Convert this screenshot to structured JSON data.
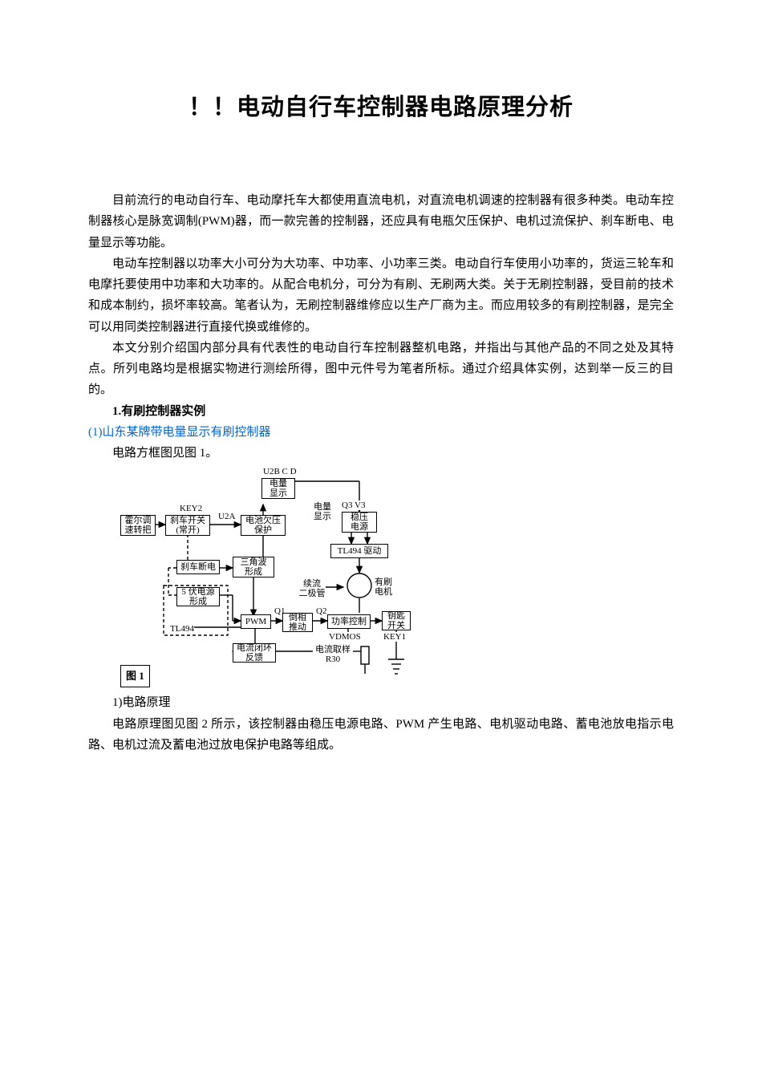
{
  "title": "！！电动自行车控制器电路原理分析",
  "paragraphs": {
    "p1": "目前流行的电动自行车、电动摩托车大都使用直流电机，对直流电机调速的控制器有很多种类。电动车控制器核心是脉宽调制(PWM)器，而一款完善的控制器，还应具有电瓶欠压保护、电机过流保护、刹车断电、电量显示等功能。",
    "p2": "电动车控制器以功率大小可分为大功率、中功率、小功率三类。电动自行车使用小功率的，货运三轮车和电摩托要使用中功率和大功率的。从配合电机分，可分为有刷、无刷两大类。关于无刷控制器，受目前的技术和成本制约，损坏率较高。笔者认为，无刷控制器维修应以生产厂商为主。而应用较多的有刷控制器，是完全可以用同类控制器进行直接代换或维修的。",
    "p3": "本文分别介绍国内部分具有代表性的电动自行车控制器整机电路，并指出与其他产品的不同之处及其特点。所列电路均是根据实物进行测绘所得，图中元件号为笔者所标。通过介绍具体实例，达到举一反三的目的。",
    "sec1": "1.有刷控制器实例",
    "link1": "(1)山东某牌带电量显示有刷控制器",
    "p4": "电路方框图见图 1。",
    "p5": "1)电路原理",
    "p6": "电路原理图见图 2 所示，该控制器由稳压电源电路、PWM 产生电路、电机驱动电路、蓄电池放电指示电路、电机过流及蓄电池过放电保护电路等组成。"
  },
  "figure1": {
    "label": "图 1",
    "nodes": {
      "key2": "KEY2",
      "hall": "霍尔调\n速转把",
      "brake_sw": "刹车开关\n(常开)",
      "u2a": "U2A",
      "undervolt": "电池欠压\n保护",
      "u2bcd": "U2B C D",
      "batt_disp": "电量\n显示",
      "batt_disp2": "电量\n显示",
      "q3v3": "Q3  V3",
      "reg_psu": "稳压\n电源",
      "brake_cut": "刹车断电",
      "tri_wave": "三角波\n形成",
      "five_v": "5 伏电源\n形成",
      "tl494a": "TL494",
      "pwm": "PWM",
      "q1": "Q1",
      "push_pull": "倒相\n推动",
      "q2": "Q2",
      "pwr_ctrl": "功率控制",
      "key_sw": "钥匙\n开关",
      "key1": "KEY1",
      "vdmos": "VDMOS",
      "freewheel": "续流\n二极管",
      "motor": "有刷\n电机",
      "tl494_drv": "TL494 驱动",
      "closed_loop": "电流闭环\n反馈",
      "i_sample": "电流取样\nR30"
    },
    "colors": {
      "line": "#000000",
      "bg": "#ffffff"
    }
  }
}
